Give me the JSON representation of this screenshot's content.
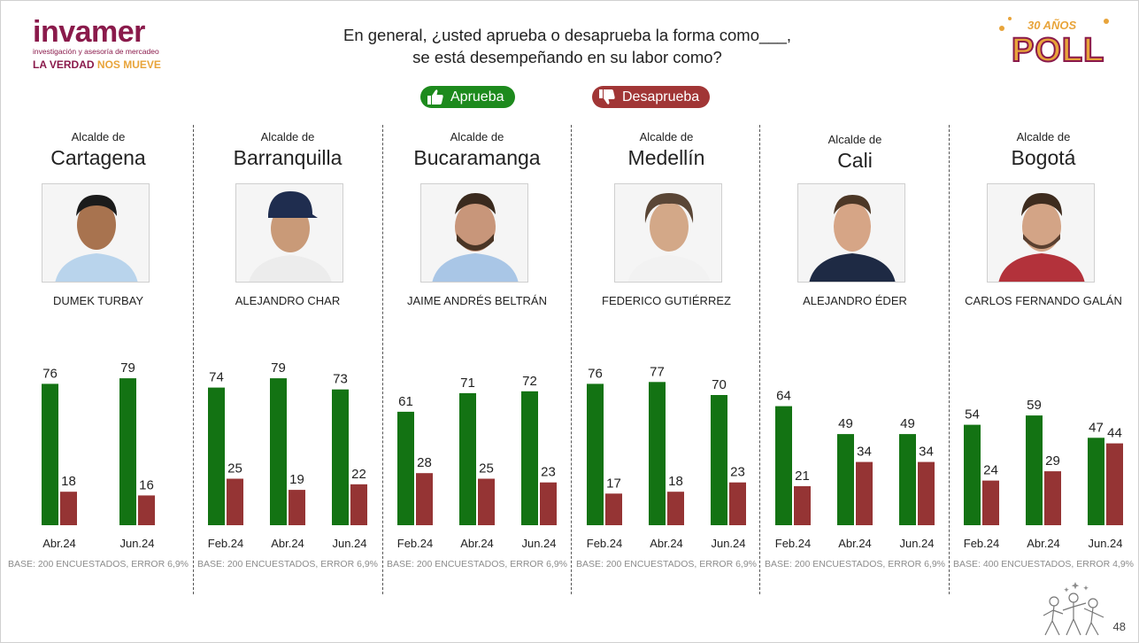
{
  "header": {
    "logo_word": "invamer",
    "logo_sub": "investigación y asesoría de mercadeo",
    "logo_tag_a": "LA VERDAD",
    "logo_tag_b": "NOS MUEVE",
    "question_line1": "En general, ¿usted aprueba o desaprueba la forma como___,",
    "question_line2": "se está desempeñando en su labor como?",
    "poll_years": "30 AÑOS",
    "poll_word": "POLL"
  },
  "legend": {
    "approve": "Aprueba",
    "disapprove": "Desaprueba",
    "approve_color": "#137313",
    "disapprove_color": "#953434"
  },
  "page_number": "48",
  "chart_data": [
    {
      "type": "bar",
      "role": "Alcalde de",
      "city": "Cartagena",
      "mayor": "DUMEK TURBAY",
      "categories": [
        "Abr.24",
        "Jun.24"
      ],
      "series": [
        {
          "name": "Aprueba",
          "values": [
            76,
            79
          ]
        },
        {
          "name": "Desaprueba",
          "values": [
            18,
            16
          ]
        }
      ],
      "base": "BASE: 200 ENCUESTADOS, ERROR 6,9%"
    },
    {
      "type": "bar",
      "role": "Alcalde de",
      "city": "Barranquilla",
      "mayor": "ALEJANDRO CHAR",
      "categories": [
        "Feb.24",
        "Abr.24",
        "Jun.24"
      ],
      "series": [
        {
          "name": "Aprueba",
          "values": [
            74,
            79,
            73
          ]
        },
        {
          "name": "Desaprueba",
          "values": [
            25,
            19,
            22
          ]
        }
      ],
      "base": "BASE: 200 ENCUESTADOS, ERROR 6,9%"
    },
    {
      "type": "bar",
      "role": "Alcalde de",
      "city": "Bucaramanga",
      "mayor": "JAIME ANDRÉS BELTRÁN",
      "categories": [
        "Feb.24",
        "Abr.24",
        "Jun.24"
      ],
      "series": [
        {
          "name": "Aprueba",
          "values": [
            61,
            71,
            72
          ]
        },
        {
          "name": "Desaprueba",
          "values": [
            28,
            25,
            23
          ]
        }
      ],
      "base": "BASE: 200 ENCUESTADOS, ERROR 6,9%"
    },
    {
      "type": "bar",
      "role": "Alcalde de",
      "city": "Medellín",
      "mayor": "FEDERICO GUTIÉRREZ",
      "categories": [
        "Feb.24",
        "Abr.24",
        "Jun.24"
      ],
      "series": [
        {
          "name": "Aprueba",
          "values": [
            76,
            77,
            70
          ]
        },
        {
          "name": "Desaprueba",
          "values": [
            17,
            18,
            23
          ]
        }
      ],
      "base": "BASE: 200 ENCUESTADOS, ERROR 6,9%"
    },
    {
      "type": "bar",
      "role": "Alcalde de",
      "city": "Cali",
      "mayor": "ALEJANDRO ÉDER",
      "categories": [
        "Feb.24",
        "Abr.24",
        "Jun.24"
      ],
      "series": [
        {
          "name": "Aprueba",
          "values": [
            64,
            49,
            49
          ]
        },
        {
          "name": "Desaprueba",
          "values": [
            21,
            34,
            34
          ]
        }
      ],
      "base": "BASE: 200 ENCUESTADOS, ERROR 6,9%"
    },
    {
      "type": "bar",
      "role": "Alcalde de",
      "city": "Bogotá",
      "mayor": "CARLOS FERNANDO GALÁN",
      "categories": [
        "Feb.24",
        "Abr.24",
        "Jun.24"
      ],
      "series": [
        {
          "name": "Aprueba",
          "values": [
            54,
            59,
            47
          ]
        },
        {
          "name": "Desaprueba",
          "values": [
            24,
            29,
            44
          ]
        }
      ],
      "base": "BASE: 400 ENCUESTADOS, ERROR 4,9%"
    }
  ]
}
